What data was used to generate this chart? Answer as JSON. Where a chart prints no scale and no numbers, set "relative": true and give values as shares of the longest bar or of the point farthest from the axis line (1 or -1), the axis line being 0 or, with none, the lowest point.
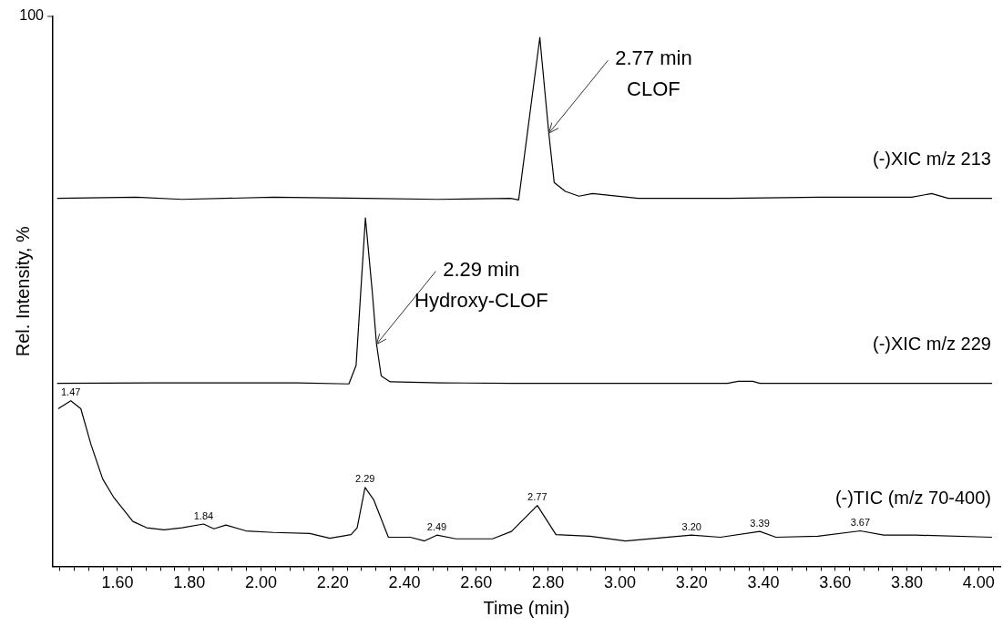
{
  "chart_data": {
    "type": "line",
    "relative": true,
    "xlabel": "Time (min)",
    "ylabel": "Rel. Intensity, %",
    "xlim": [
      1.42,
      4.06
    ],
    "xticks": [
      {
        "value": 1.44,
        "label": null
      },
      {
        "value": 1.48,
        "label": null
      },
      {
        "value": 1.52,
        "label": null
      },
      {
        "value": 1.56,
        "label": null
      },
      {
        "value": 1.6,
        "label": "1.60"
      },
      {
        "value": 1.64,
        "label": null
      },
      {
        "value": 1.68,
        "label": null
      },
      {
        "value": 1.72,
        "label": null
      },
      {
        "value": 1.76,
        "label": null
      },
      {
        "value": 1.8,
        "label": "1.80"
      },
      {
        "value": 1.84,
        "label": null
      },
      {
        "value": 1.88,
        "label": null
      },
      {
        "value": 1.92,
        "label": null
      },
      {
        "value": 1.96,
        "label": null
      },
      {
        "value": 2.0,
        "label": "2.00"
      },
      {
        "value": 2.04,
        "label": null
      },
      {
        "value": 2.08,
        "label": null
      },
      {
        "value": 2.12,
        "label": null
      },
      {
        "value": 2.16,
        "label": null
      },
      {
        "value": 2.2,
        "label": "2.20"
      },
      {
        "value": 2.24,
        "label": null
      },
      {
        "value": 2.28,
        "label": null
      },
      {
        "value": 2.32,
        "label": null
      },
      {
        "value": 2.36,
        "label": null
      },
      {
        "value": 2.4,
        "label": "2.40"
      },
      {
        "value": 2.44,
        "label": null
      },
      {
        "value": 2.48,
        "label": null
      },
      {
        "value": 2.52,
        "label": null
      },
      {
        "value": 2.56,
        "label": null
      },
      {
        "value": 2.6,
        "label": "2.60"
      },
      {
        "value": 2.64,
        "label": null
      },
      {
        "value": 2.68,
        "label": null
      },
      {
        "value": 2.72,
        "label": null
      },
      {
        "value": 2.76,
        "label": null
      },
      {
        "value": 2.8,
        "label": "2.80"
      },
      {
        "value": 2.84,
        "label": null
      },
      {
        "value": 2.88,
        "label": null
      },
      {
        "value": 2.92,
        "label": null
      },
      {
        "value": 2.96,
        "label": null
      },
      {
        "value": 3.0,
        "label": "3.00"
      },
      {
        "value": 3.04,
        "label": null
      },
      {
        "value": 3.08,
        "label": null
      },
      {
        "value": 3.12,
        "label": null
      },
      {
        "value": 3.16,
        "label": null
      },
      {
        "value": 3.2,
        "label": "3.20"
      },
      {
        "value": 3.24,
        "label": null
      },
      {
        "value": 3.28,
        "label": null
      },
      {
        "value": 3.32,
        "label": null
      },
      {
        "value": 3.36,
        "label": null
      },
      {
        "value": 3.4,
        "label": "3.40"
      },
      {
        "value": 3.44,
        "label": null
      },
      {
        "value": 3.48,
        "label": null
      },
      {
        "value": 3.52,
        "label": null
      },
      {
        "value": 3.56,
        "label": null
      },
      {
        "value": 3.6,
        "label": "3.60"
      },
      {
        "value": 3.64,
        "label": null
      },
      {
        "value": 3.68,
        "label": null
      },
      {
        "value": 3.72,
        "label": null
      },
      {
        "value": 3.76,
        "label": null
      },
      {
        "value": 3.8,
        "label": "3.80"
      },
      {
        "value": 3.84,
        "label": null
      },
      {
        "value": 3.88,
        "label": null
      },
      {
        "value": 3.92,
        "label": null
      },
      {
        "value": 3.96,
        "label": null
      },
      {
        "value": 4.0,
        "label": "4.00"
      },
      {
        "value": 4.04,
        "label": null
      }
    ],
    "grid": false,
    "legend": false,
    "marker": "none",
    "line_style": "solid",
    "series": [
      {
        "name": "(-)XIC m/z 213",
        "color": "#000000",
        "x": [
          1.432,
          1.653,
          1.78,
          2.035,
          2.289,
          2.492,
          2.695,
          2.718,
          2.777,
          2.802,
          2.817,
          2.848,
          2.886,
          2.924,
          3.051,
          3.305,
          3.559,
          3.813,
          3.869,
          3.915,
          4.037
        ],
        "values": [
          0.696,
          0.698,
          0.694,
          0.698,
          0.696,
          0.694,
          0.696,
          0.693,
          1.0,
          0.819,
          0.726,
          0.709,
          0.7,
          0.705,
          0.696,
          0.696,
          0.698,
          0.698,
          0.705,
          0.696,
          0.696
        ]
      },
      {
        "name": "(-)XIC m/z 229",
        "color": "#000000",
        "x": [
          1.432,
          1.7,
          1.9,
          2.1,
          2.245,
          2.265,
          2.291,
          2.31,
          2.322,
          2.335,
          2.36,
          2.5,
          2.7,
          3.0,
          3.3,
          3.33,
          3.37,
          3.39,
          3.7,
          4.037
        ],
        "values": [
          0.346,
          0.347,
          0.347,
          0.347,
          0.345,
          0.38,
          0.659,
          0.52,
          0.42,
          0.36,
          0.349,
          0.347,
          0.346,
          0.346,
          0.346,
          0.35,
          0.35,
          0.346,
          0.346,
          0.346
        ]
      },
      {
        "name": "(-)TIC (m/z 70-400)",
        "color": "#000000",
        "x": [
          1.435,
          1.47,
          1.498,
          1.526,
          1.559,
          1.59,
          1.643,
          1.681,
          1.73,
          1.78,
          1.84,
          1.869,
          1.902,
          1.958,
          2.035,
          2.136,
          2.192,
          2.251,
          2.268,
          2.29,
          2.314,
          2.355,
          2.416,
          2.456,
          2.49,
          2.543,
          2.645,
          2.698,
          2.77,
          2.822,
          2.916,
          3.016,
          3.2,
          3.28,
          3.39,
          3.435,
          3.552,
          3.67,
          3.735,
          3.824,
          4.037
        ],
        "values": [
          0.298,
          0.313,
          0.298,
          0.231,
          0.165,
          0.13,
          0.085,
          0.073,
          0.069,
          0.073,
          0.08,
          0.071,
          0.078,
          0.067,
          0.064,
          0.062,
          0.053,
          0.06,
          0.073,
          0.149,
          0.126,
          0.055,
          0.055,
          0.048,
          0.059,
          0.052,
          0.052,
          0.066,
          0.115,
          0.06,
          0.057,
          0.048,
          0.059,
          0.055,
          0.066,
          0.055,
          0.057,
          0.067,
          0.059,
          0.059,
          0.055
        ]
      }
    ],
    "annotations": [
      "100",
      {
        "text": "2.77 min\nCLOF",
        "x": 2.802,
        "y": 0.819
      },
      {
        "text": "2.29 min\nHydroxy-CLOF",
        "x": 2.322,
        "y": 0.42
      },
      {
        "text": "1.47",
        "x": 1.47,
        "y": 0.313
      },
      {
        "text": "1.84",
        "x": 1.84,
        "y": 0.08
      },
      {
        "text": "2.29",
        "x": 2.29,
        "y": 0.149
      },
      {
        "text": "2.49",
        "x": 2.49,
        "y": 0.059
      },
      {
        "text": "2.77",
        "x": 2.77,
        "y": 0.115
      },
      {
        "text": "3.20",
        "x": 3.2,
        "y": 0.059
      },
      {
        "text": "3.39",
        "x": 3.39,
        "y": 0.066
      },
      {
        "text": "3.67",
        "x": 3.67,
        "y": 0.067
      }
    ]
  }
}
